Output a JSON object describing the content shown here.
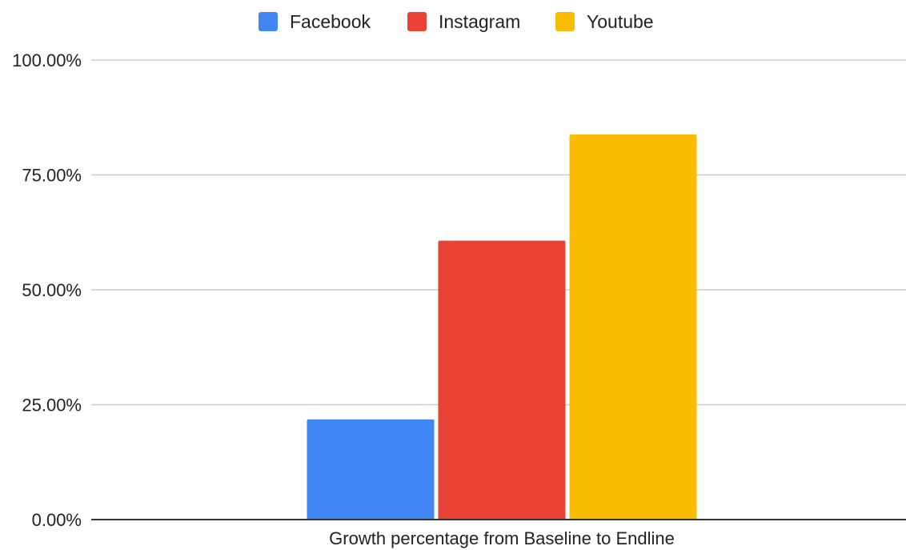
{
  "chart_data": {
    "type": "bar",
    "title": "",
    "xlabel": "",
    "ylabel": "",
    "categories": [
      "Growth percentage from Baseline to Endline"
    ],
    "series": [
      {
        "name": "Facebook",
        "values": [
          21.8
        ],
        "color": "#4285f4"
      },
      {
        "name": "Instagram",
        "values": [
          60.7
        ],
        "color": "#ea4335"
      },
      {
        "name": "Youtube",
        "values": [
          83.8
        ],
        "color": "#fbbc04"
      }
    ],
    "ylim": [
      0,
      100
    ],
    "yticks": [
      "0.00%",
      "25.00%",
      "50.00%",
      "75.00%",
      "100.00%"
    ],
    "ytick_values": [
      0,
      25,
      50,
      75,
      100
    ],
    "grid": true,
    "legend_position": "top-center",
    "gridline_color": "#cccccc",
    "axis_color": "#333333"
  }
}
